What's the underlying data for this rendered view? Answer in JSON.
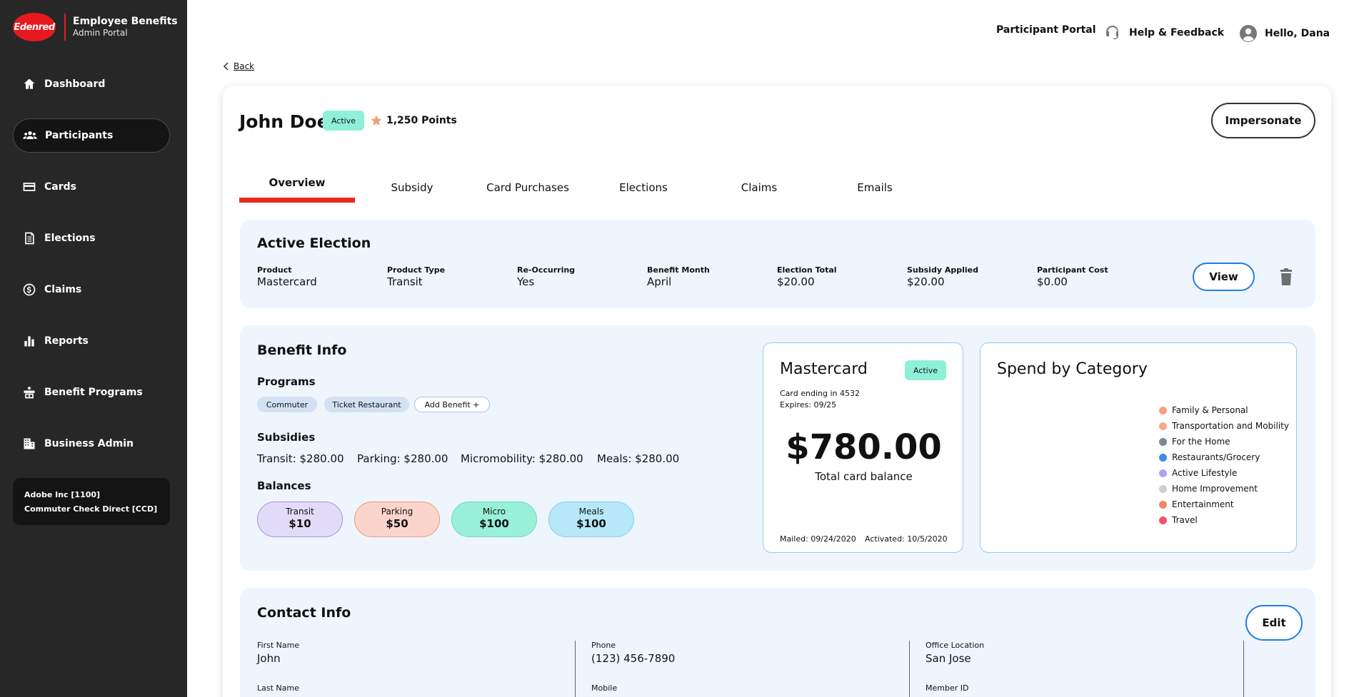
{
  "brand": {
    "logo": "Edenred",
    "title": "Employee Benefits",
    "subtitle": "Admin Portal"
  },
  "nav": [
    {
      "label": "Dashboard",
      "icon": "home-icon"
    },
    {
      "label": "Participants",
      "icon": "people-icon"
    },
    {
      "label": "Cards",
      "icon": "card-icon"
    },
    {
      "label": "Elections",
      "icon": "document-icon"
    },
    {
      "label": "Claims",
      "icon": "dollar-icon"
    },
    {
      "label": "Reports",
      "icon": "bar-chart-icon"
    },
    {
      "label": "Benefit Programs",
      "icon": "gift-box-icon"
    },
    {
      "label": "Business Admin",
      "icon": "building-icon"
    }
  ],
  "org": {
    "line1": "Adobe Inc [1100]",
    "line2": "Commuter Check Direct [CCD]"
  },
  "header": {
    "participant_portal": "Participant Portal",
    "help": "Help & Feedback",
    "greeting": "Hello, Dana"
  },
  "back": "Back",
  "participant": {
    "name": "John Doe",
    "status": "Active",
    "points": "1,250 Points",
    "impersonate": "Impersonate"
  },
  "tabs": [
    "Overview",
    "Subsidy",
    "Card Purchases",
    "Elections",
    "Claims",
    "Emails"
  ],
  "active_election": {
    "title": "Active Election",
    "fields": [
      {
        "label": "Product",
        "value": "Mastercard"
      },
      {
        "label": "Product Type",
        "value": "Transit"
      },
      {
        "label": "Re-Occurring",
        "value": "Yes"
      },
      {
        "label": "Benefit Month",
        "value": "April"
      },
      {
        "label": "Election Total",
        "value": "$20.00"
      },
      {
        "label": "Subsidy Applied",
        "value": "$20.00"
      },
      {
        "label": "Participant Cost",
        "value": "$0.00"
      }
    ],
    "view": "View"
  },
  "benefit_info": {
    "title": "Benefit Info",
    "programs_label": "Programs",
    "programs": [
      "Commuter",
      "Ticket Restaurant"
    ],
    "add_benefit": "Add Benefit +",
    "subsidies_label": "Subsidies",
    "subsidies": [
      "Transit: $280.00",
      "Parking: $280.00",
      "Micromobility: $280.00",
      "Meals: $280.00"
    ],
    "balances_label": "Balances",
    "balances": [
      {
        "label": "Transit",
        "value": "$10",
        "bg": "#e2dcf8",
        "border": "#a98de8"
      },
      {
        "label": "Parking",
        "value": "$50",
        "bg": "#fbd5cc",
        "border": "#f09a7a"
      },
      {
        "label": "Micro",
        "value": "$100",
        "bg": "#98f0d8",
        "border": "#6fd9bd"
      },
      {
        "label": "Meals",
        "value": "$100",
        "bg": "#b6e8fa",
        "border": "#89cdeb"
      }
    ]
  },
  "card": {
    "title": "Mastercard",
    "status": "Active",
    "ending": "Card ending in 4532",
    "expires": "Expires: 09/25",
    "balance": "$780.00",
    "balance_label": "Total card balance",
    "mailed": "Mailed: 09/24/2020",
    "activated": "Activated: 10/5/2020"
  },
  "spend": {
    "title": "Spend by Category",
    "categories": [
      {
        "label": "Family & Personal",
        "color": "#f4a07e"
      },
      {
        "label": "Transportation and Mobility",
        "color": "#f6a98a"
      },
      {
        "label": "For the Home",
        "color": "#7c8a92"
      },
      {
        "label": "Restaurants/Grocery",
        "color": "#3d8fe0"
      },
      {
        "label": "Active Lifestyle",
        "color": "#b3a0ef"
      },
      {
        "label": "Home Improvement",
        "color": "#cfcfcf"
      },
      {
        "label": "Entertainment",
        "color": "#f08868"
      },
      {
        "label": "Travel",
        "color": "#ef5468"
      }
    ]
  },
  "contact": {
    "title": "Contact Info",
    "edit": "Edit",
    "fields": [
      {
        "label": "First Name",
        "value": "John"
      },
      {
        "label": "Phone",
        "value": "(123) 456-7890"
      },
      {
        "label": "Office Location",
        "value": "San Jose"
      },
      {
        "label": "Last Name",
        "value": ""
      },
      {
        "label": "Mobile",
        "value": ""
      },
      {
        "label": "Member ID",
        "value": ""
      }
    ]
  }
}
